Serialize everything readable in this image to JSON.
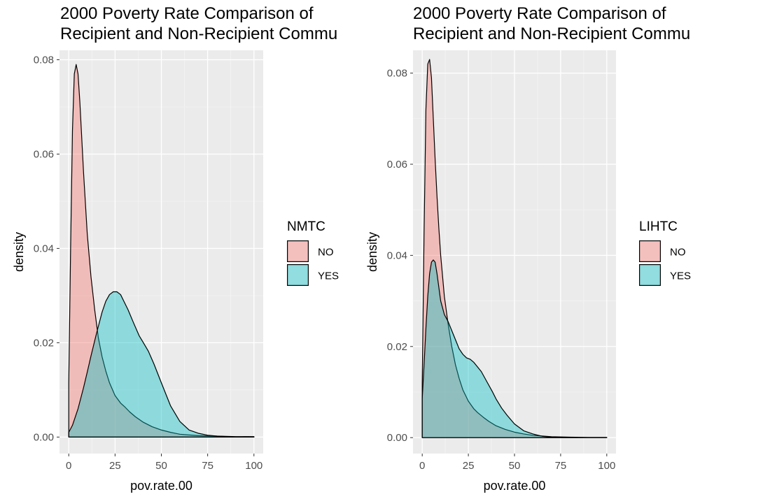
{
  "chart_data": [
    {
      "type": "area",
      "subtype": "density",
      "title": [
        "2000 Poverty Rate Comparison of",
        "Recipient and Non-Recipient Commu"
      ],
      "xlabel": "pov.rate.00",
      "ylabel": "density",
      "xlim": [
        0,
        100
      ],
      "ylim": [
        0,
        0.082
      ],
      "xticks": [
        0,
        25,
        50,
        75,
        100
      ],
      "xtick_labels": [
        "0",
        "25",
        "50",
        "75",
        "100"
      ],
      "yticks": [
        0,
        0.02,
        0.04,
        0.06,
        0.08
      ],
      "ytick_labels": [
        "0.00",
        "0.02",
        "0.04",
        "0.06",
        "0.08"
      ],
      "grid": true,
      "legend": {
        "title": "NMTC",
        "position": "right"
      },
      "series": [
        {
          "name": "NO",
          "color": "#F8766D",
          "x": [
            0,
            1,
            2,
            3,
            4,
            5,
            6,
            8,
            10,
            12,
            14,
            16,
            18,
            20,
            22,
            25,
            28,
            30,
            33,
            36,
            40,
            45,
            50,
            55,
            60,
            70,
            80,
            90,
            100
          ],
          "y": [
            0.0115,
            0.04,
            0.065,
            0.077,
            0.079,
            0.077,
            0.071,
            0.056,
            0.043,
            0.034,
            0.027,
            0.021,
            0.017,
            0.014,
            0.0115,
            0.0088,
            0.0072,
            0.0065,
            0.0053,
            0.0043,
            0.0032,
            0.0022,
            0.0015,
            0.001,
            0.0006,
            0.0003,
            0.0002,
            0.0001,
            5e-05
          ]
        },
        {
          "name": "YES",
          "color": "#00BFC4",
          "x": [
            0,
            2,
            5,
            8,
            10,
            12,
            15,
            18,
            20,
            22,
            24,
            26,
            28,
            30,
            32,
            35,
            38,
            40,
            43,
            46,
            50,
            55,
            60,
            65,
            70,
            75,
            80,
            85,
            90,
            95,
            100
          ],
          "y": [
            0.001,
            0.0025,
            0.006,
            0.0105,
            0.0138,
            0.0172,
            0.022,
            0.0265,
            0.0288,
            0.0302,
            0.0308,
            0.0308,
            0.0302,
            0.0286,
            0.027,
            0.0242,
            0.0215,
            0.0202,
            0.0182,
            0.0155,
            0.0115,
            0.0066,
            0.0033,
            0.0015,
            0.0008,
            0.0004,
            0.0002,
            0.0001,
            5e-05,
            0.0001,
            0.0001
          ]
        }
      ]
    },
    {
      "type": "area",
      "subtype": "density",
      "title": [
        "2000 Poverty Rate Comparison of",
        "Recipient and Non-Recipient Commu"
      ],
      "xlabel": "pov.rate.00",
      "ylabel": "density",
      "xlim": [
        0,
        100
      ],
      "ylim": [
        0,
        0.085
      ],
      "xticks": [
        0,
        25,
        50,
        75,
        100
      ],
      "xtick_labels": [
        "0",
        "25",
        "50",
        "75",
        "100"
      ],
      "yticks": [
        0,
        0.02,
        0.04,
        0.06,
        0.08
      ],
      "ytick_labels": [
        "0.00",
        "0.02",
        "0.04",
        "0.06",
        "0.08"
      ],
      "grid": true,
      "legend": {
        "title": "LIHTC",
        "position": "right"
      },
      "series": [
        {
          "name": "NO",
          "color": "#F8766D",
          "x": [
            0,
            1,
            2,
            3,
            4,
            5,
            6,
            7,
            8,
            9,
            10,
            12,
            14,
            16,
            18,
            20,
            22,
            25,
            28,
            30,
            33,
            36,
            40,
            45,
            50,
            55,
            60,
            70,
            80,
            90,
            100
          ],
          "y": [
            0.012,
            0.045,
            0.072,
            0.082,
            0.083,
            0.079,
            0.07,
            0.061,
            0.053,
            0.046,
            0.04,
            0.031,
            0.025,
            0.02,
            0.016,
            0.013,
            0.0105,
            0.008,
            0.0063,
            0.0055,
            0.0045,
            0.0036,
            0.0026,
            0.0018,
            0.0012,
            0.0008,
            0.0005,
            0.0002,
            0.0001,
            5e-05,
            5e-05
          ]
        },
        {
          "name": "YES",
          "color": "#00BFC4",
          "x": [
            0,
            1,
            2,
            3,
            4,
            5,
            6,
            7,
            8,
            9,
            10,
            12,
            14,
            16,
            18,
            20,
            22,
            24,
            26,
            28,
            30,
            32,
            35,
            38,
            40,
            43,
            46,
            50,
            55,
            60,
            65,
            70,
            75,
            80,
            90,
            100
          ],
          "y": [
            0.0085,
            0.016,
            0.024,
            0.031,
            0.036,
            0.0385,
            0.039,
            0.0385,
            0.036,
            0.033,
            0.03,
            0.027,
            0.0255,
            0.0235,
            0.0215,
            0.0195,
            0.0183,
            0.0175,
            0.0172,
            0.0165,
            0.0155,
            0.0145,
            0.0123,
            0.0101,
            0.0085,
            0.0065,
            0.0049,
            0.003,
            0.0015,
            0.0008,
            0.0003,
            0.0001,
            5e-05,
            2e-05,
            1e-05,
            1e-05
          ]
        }
      ]
    }
  ]
}
